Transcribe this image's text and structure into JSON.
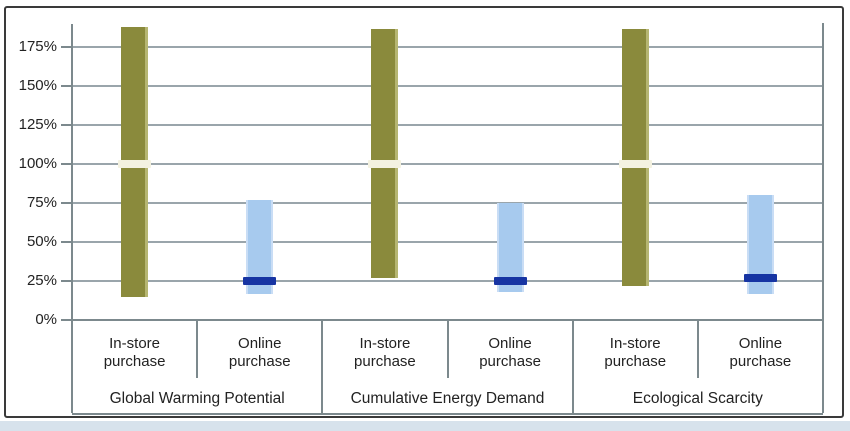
{
  "chart_data": {
    "type": "bar",
    "subtype": "floating_range_columns",
    "title": "",
    "xlabel": "",
    "ylabel": "",
    "ylim": [
      0,
      190
    ],
    "ytick_values": [
      0,
      25,
      50,
      75,
      100,
      125,
      150,
      175
    ],
    "ytick_labels": [
      "0%",
      "25%",
      "50%",
      "75%",
      "100%",
      "125%",
      "150%",
      "175%"
    ],
    "grid": true,
    "legend": "none",
    "series_names": [
      "In-store purchase",
      "Online purchase"
    ],
    "groups": [
      {
        "category": "Global Warming Potential",
        "bars": [
          {
            "label": "In-store purchase",
            "series": "in-store",
            "low": 15,
            "high": 188,
            "marker_value": 100,
            "marker_type": "white-gap"
          },
          {
            "label": "Online purchase",
            "series": "online",
            "low": 17,
            "high": 77,
            "marker_value": 25,
            "marker_type": "dark-line"
          }
        ]
      },
      {
        "category": "Cumulative Energy Demand",
        "bars": [
          {
            "label": "In-store purchase",
            "series": "in-store",
            "low": 27,
            "high": 187,
            "marker_value": 100,
            "marker_type": "white-gap"
          },
          {
            "label": "Online purchase",
            "series": "online",
            "low": 18,
            "high": 75,
            "marker_value": 25,
            "marker_type": "dark-line"
          }
        ]
      },
      {
        "category": "Ecological Scarcity",
        "bars": [
          {
            "label": "In-store purchase",
            "series": "in-store",
            "low": 22,
            "high": 187,
            "marker_value": 100,
            "marker_type": "white-gap"
          },
          {
            "label": "Online purchase",
            "series": "online",
            "low": 17,
            "high": 80,
            "marker_value": 27,
            "marker_type": "dark-line"
          }
        ]
      }
    ],
    "colors": {
      "in_store_bar": "#8a8a3c",
      "in_store_bar_highlight": "#b6b672",
      "in_store_marker": "#f4f2e1",
      "online_bar": "#a7caee",
      "online_bar_highlight": "#c9ddf5",
      "online_marker": "#1634a3",
      "gridline": "#9aa5ab",
      "axis_line": "#7c898d",
      "text": "#222222",
      "frame_border": "#3a3a3a",
      "bottom_strip": "#d7e2ec",
      "background": "#ffffff"
    }
  }
}
